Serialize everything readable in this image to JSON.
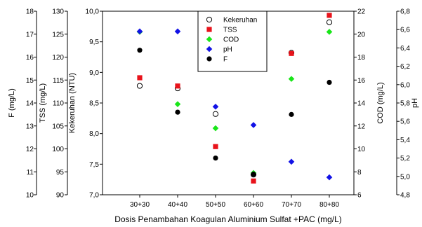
{
  "chart_data": {
    "type": "scatter",
    "categories": [
      "30+30",
      "40+40",
      "50+50",
      "60+60",
      "70+70",
      "80+80"
    ],
    "xlabel": "Dosis Penambahan Koagulan Aluminium Sulfat +PAC (mg/L)",
    "legend_position": "top-center",
    "grid": false,
    "axes": [
      {
        "id": "kekeruhan",
        "side": "left",
        "label": "Kekeruhan (NTU)",
        "min": 7.0,
        "max": 10.0,
        "ticks": [
          "7,0",
          "7,5",
          "8,0",
          "8,5",
          "9,0",
          "9,5",
          "10,0"
        ]
      },
      {
        "id": "tss",
        "side": "left",
        "label": "TSS (mg/L)",
        "min": 90,
        "max": 130,
        "ticks": [
          "90",
          "95",
          "100",
          "105",
          "110",
          "115",
          "120",
          "125",
          "130"
        ]
      },
      {
        "id": "f",
        "side": "left",
        "label": "F (mg/L)",
        "min": 10,
        "max": 18,
        "ticks": [
          "10",
          "11",
          "12",
          "13",
          "14",
          "15",
          "16",
          "17",
          "18"
        ]
      },
      {
        "id": "cod",
        "side": "right",
        "label": "COD (mg/L)",
        "min": 6,
        "max": 22,
        "ticks": [
          "6",
          "8",
          "10",
          "12",
          "14",
          "16",
          "18",
          "20",
          "22"
        ]
      },
      {
        "id": "ph",
        "side": "right",
        "label": "pH",
        "min": 4.8,
        "max": 6.8,
        "ticks": [
          "4,8",
          "5,0",
          "5,2",
          "5,4",
          "5,6",
          "5,8",
          "6,0",
          "6,2",
          "6,4",
          "6,6",
          "6,8"
        ]
      }
    ],
    "series": [
      {
        "name": "Kekeruhan",
        "axis": "kekeruhan",
        "marker": "circle-open",
        "color": "#000000",
        "values": [
          8.78,
          8.74,
          8.32,
          7.33,
          9.32,
          9.82
        ]
      },
      {
        "name": "TSS",
        "axis": "tss",
        "marker": "square",
        "color": "#e8131b",
        "values": [
          115.5,
          113.7,
          100.5,
          93.0,
          120.8,
          129.1
        ]
      },
      {
        "name": "COD",
        "axis": "cod",
        "marker": "diamond",
        "color": "#19e619",
        "values": [
          20.2,
          13.9,
          11.8,
          7.9,
          16.1,
          20.2
        ]
      },
      {
        "name": "pH",
        "axis": "ph",
        "marker": "diamond",
        "color": "#1212e6",
        "values": [
          6.58,
          6.58,
          5.76,
          5.56,
          5.16,
          4.99
        ]
      },
      {
        "name": "F",
        "axis": "f",
        "marker": "circle",
        "color": "#000000",
        "values": [
          16.3,
          13.6,
          11.6,
          10.9,
          13.5,
          14.9
        ]
      }
    ]
  }
}
